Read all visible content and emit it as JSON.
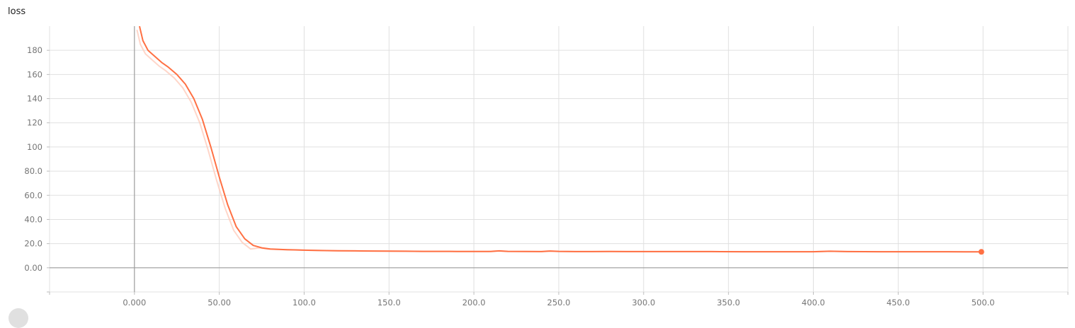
{
  "chart_data": {
    "type": "line",
    "title": "loss",
    "xlabel": "",
    "ylabel": "",
    "xlim": [
      -50,
      550
    ],
    "ylim": [
      -20,
      200
    ],
    "x_ticks": [
      0,
      50,
      100,
      150,
      200,
      250,
      300,
      350,
      400,
      450,
      500
    ],
    "x_tick_labels": [
      "0.000",
      "50.00",
      "100.0",
      "150.0",
      "200.0",
      "250.0",
      "300.0",
      "350.0",
      "400.0",
      "450.0",
      "500.0"
    ],
    "y_ticks": [
      0,
      20,
      40,
      60,
      80,
      100,
      120,
      140,
      160,
      180
    ],
    "y_tick_labels": [
      "0.00",
      "20.0",
      "40.0",
      "60.0",
      "80.0",
      "100",
      "120",
      "140",
      "160",
      "180"
    ],
    "grid": true,
    "colors": {
      "line": "#ff7043",
      "raw": "#ffccbc",
      "grid": "#e0e0e0",
      "axis": "#9e9e9e"
    },
    "series": [
      {
        "x": [
          3,
          5,
          8,
          12,
          16,
          20,
          25,
          30,
          35,
          40,
          45,
          50,
          55,
          60,
          65,
          70,
          75,
          80,
          85,
          90,
          95,
          100,
          110,
          120,
          130,
          140,
          150,
          160,
          170,
          180,
          190,
          200,
          210,
          215,
          220,
          230,
          240,
          245,
          250,
          260,
          270,
          280,
          290,
          300,
          320,
          340,
          360,
          380,
          400,
          410,
          420,
          440,
          460,
          480,
          490,
          499
        ],
        "y": [
          200,
          188,
          180,
          175,
          170,
          166,
          160,
          152,
          140,
          123,
          100,
          75,
          52,
          34,
          24,
          18.5,
          16.5,
          15.5,
          15.2,
          15,
          14.8,
          14.6,
          14.3,
          14.1,
          14,
          13.9,
          13.8,
          13.7,
          13.6,
          13.6,
          13.5,
          13.5,
          13.5,
          14,
          13.6,
          13.5,
          13.4,
          13.9,
          13.6,
          13.4,
          13.4,
          13.5,
          13.4,
          13.4,
          13.4,
          13.4,
          13.3,
          13.3,
          13.3,
          13.7,
          13.4,
          13.3,
          13.3,
          13.3,
          13.2,
          13.2
        ]
      }
    ]
  }
}
